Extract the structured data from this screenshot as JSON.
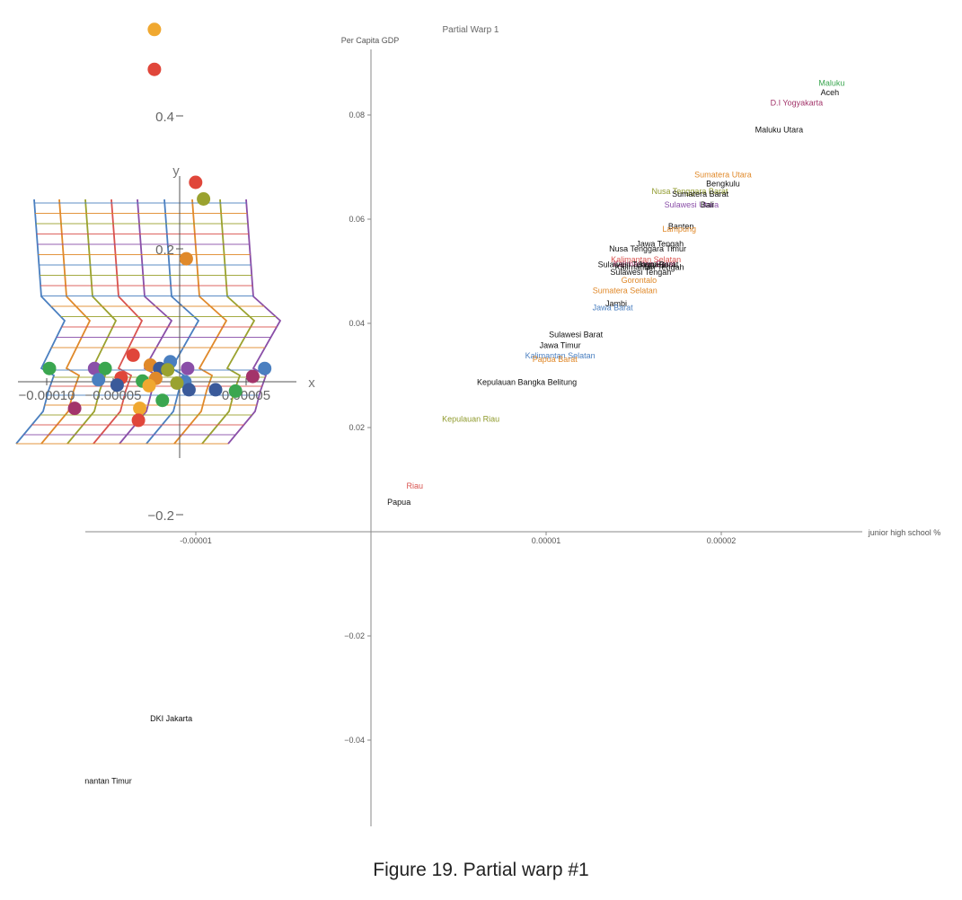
{
  "chart_data": [
    {
      "type": "scatter",
      "title": "Partial Warp 1",
      "xlabel": "junior high school %",
      "ylabel": "Per Capita GDP",
      "xlim": [
        -1.6e-05,
        2.75e-05
      ],
      "ylim": [
        -0.0555,
        0.0925
      ],
      "x_ticks": [
        {
          "value": -1e-05,
          "label": "-0.00001"
        },
        {
          "value": 1e-05,
          "label": "0.00001"
        },
        {
          "value": 2e-05,
          "label": "0.00002"
        }
      ],
      "y_ticks": [
        {
          "value": 0.08,
          "label": "0.08"
        },
        {
          "value": 0.06,
          "label": "0.06"
        },
        {
          "value": 0.04,
          "label": "0.04"
        },
        {
          "value": 0.02,
          "label": "0.02"
        },
        {
          "value": -0.02,
          "label": "−0.02"
        },
        {
          "value": -0.04,
          "label": "−0.04"
        }
      ],
      "points": [
        {
          "label": "Maluku",
          "x": 2.63e-05,
          "y": 0.0856,
          "color": "#3aa64f"
        },
        {
          "label": "Aceh",
          "x": 2.62e-05,
          "y": 0.0838,
          "color": "#111111"
        },
        {
          "label": "D.I Yogyakarta",
          "x": 2.43e-05,
          "y": 0.0818,
          "color": "#a3346a"
        },
        {
          "label": "Maluku Utara",
          "x": 2.33e-05,
          "y": 0.0766,
          "color": "#111111"
        },
        {
          "label": "Sumatera Utara",
          "x": 2.01e-05,
          "y": 0.068,
          "color": "#e0892a"
        },
        {
          "label": "Bengkulu",
          "x": 2.01e-05,
          "y": 0.0663,
          "color": "#111111"
        },
        {
          "label": "Nusa Tenggara Barat",
          "x": 1.82e-05,
          "y": 0.0648,
          "color": "#8f9a2c"
        },
        {
          "label": "Sumatera Barat",
          "x": 1.88e-05,
          "y": 0.0643,
          "color": "#111111"
        },
        {
          "label": "Sulawesi Utara",
          "x": 1.83e-05,
          "y": 0.0622,
          "color": "#8a4fa8"
        },
        {
          "label": "Bali",
          "x": 1.92e-05,
          "y": 0.0622,
          "color": "#111111"
        },
        {
          "label": "Banten",
          "x": 1.77e-05,
          "y": 0.0581,
          "color": "#111111"
        },
        {
          "label": "Lampung",
          "x": 1.76e-05,
          "y": 0.0576,
          "color": "#e0892a"
        },
        {
          "label": "Jawa Tengah",
          "x": 1.65e-05,
          "y": 0.0547,
          "color": "#111111"
        },
        {
          "label": "Nusa Tenggara Timur",
          "x": 1.58e-05,
          "y": 0.0538,
          "color": "#111111"
        },
        {
          "label": "Kalimantan Selatan",
          "x": 1.57e-05,
          "y": 0.0517,
          "color": "#d9534f"
        },
        {
          "label": "Kalimantan Barat",
          "x": 1.56e-05,
          "y": 0.0509,
          "color": "#a3346a"
        },
        {
          "label": "Sulawesi Tenggara",
          "x": 1.49e-05,
          "y": 0.0508,
          "color": "#111111"
        },
        {
          "label": "Jawa Barat",
          "x": 1.64e-05,
          "y": 0.0508,
          "color": "#111111"
        },
        {
          "label": "Kalimantan Tengah",
          "x": 1.59e-05,
          "y": 0.0503,
          "color": "#111111"
        },
        {
          "label": "Sulawesi Tengah",
          "x": 1.54e-05,
          "y": 0.0493,
          "color": "#111111"
        },
        {
          "label": "Gorontalo",
          "x": 1.53e-05,
          "y": 0.0478,
          "color": "#e0892a"
        },
        {
          "label": "Sumatera Selatan",
          "x": 1.45e-05,
          "y": 0.0458,
          "color": "#e0892a"
        },
        {
          "label": "Jambi",
          "x": 1.4e-05,
          "y": 0.0433,
          "color": "#111111"
        },
        {
          "label": "Jawa Barat",
          "x": 1.38e-05,
          "y": 0.0425,
          "color": "#4a7fc0"
        },
        {
          "label": "Sulawesi Barat",
          "x": 1.17e-05,
          "y": 0.0373,
          "color": "#111111"
        },
        {
          "label": "Jawa Timur",
          "x": 1.08e-05,
          "y": 0.0353,
          "color": "#111111"
        },
        {
          "label": "Kalimantan Selatan",
          "x": 1.08e-05,
          "y": 0.0333,
          "color": "#4a7fc0"
        },
        {
          "label": "Papua Barat",
          "x": 1.05e-05,
          "y": 0.0326,
          "color": "#e0892a"
        },
        {
          "label": "Kepulauan Bangka Belitung",
          "x": 8.9e-06,
          "y": 0.0282,
          "color": "#111111"
        },
        {
          "label": "Kepulauan Riau",
          "x": 5.7e-06,
          "y": 0.0211,
          "color": "#8f9a2c"
        },
        {
          "label": "Riau",
          "x": 2.5e-06,
          "y": 0.0083,
          "color": "#d9534f"
        },
        {
          "label": "Papua",
          "x": 1.6e-06,
          "y": 0.0052,
          "color": "#111111"
        },
        {
          "label": "DKI Jakarta",
          "x": -1.14e-05,
          "y": -0.0364,
          "color": "#111111"
        },
        {
          "label": "nantan Timur",
          "x": -1.5e-05,
          "y": -0.0484,
          "color": "#111111"
        }
      ]
    },
    {
      "type": "scatter",
      "title": "",
      "xlabel": "x",
      "ylabel": "y",
      "xlim": [
        -0.00012,
        7e-05
      ],
      "ylim": [
        -0.245,
        0.55
      ],
      "x_ticks": [
        {
          "value": -0.0001,
          "label": "−0.00010"
        },
        {
          "value": -5e-05,
          "label": "−0.00005"
        },
        {
          "value": 5e-05,
          "label": "0.00005"
        }
      ],
      "y_ticks": [
        {
          "value": 0.4,
          "label": "0.4"
        },
        {
          "value": 0.2,
          "label": "0.2"
        },
        {
          "value": -0.2,
          "label": "−0.2"
        }
      ],
      "points": [
        {
          "x": -1.9e-05,
          "y": 0.53,
          "color": "#f0a830"
        },
        {
          "x": -1.9e-05,
          "y": 0.47,
          "color": "#e0463a"
        },
        {
          "x": 1.2e-05,
          "y": 0.3,
          "color": "#e0463a"
        },
        {
          "x": 1.8e-05,
          "y": 0.275,
          "color": "#9aa22f"
        },
        {
          "x": 5e-06,
          "y": 0.185,
          "color": "#e0892a"
        },
        {
          "x": -3.5e-05,
          "y": 0.04,
          "color": "#e0463a"
        },
        {
          "x": -7e-06,
          "y": 0.03,
          "color": "#4a7fc0"
        },
        {
          "x": -2.2e-05,
          "y": 0.025,
          "color": "#e0892a"
        },
        {
          "x": -1.5e-05,
          "y": 0.02,
          "color": "#3a5a9a"
        },
        {
          "x": 6e-06,
          "y": 0.02,
          "color": "#8a4fa8"
        },
        {
          "x": -6.4e-05,
          "y": 0.02,
          "color": "#8a4fa8"
        },
        {
          "x": -5.6e-05,
          "y": 0.02,
          "color": "#3aa64f"
        },
        {
          "x": -9.8e-05,
          "y": 0.02,
          "color": "#3aa64f"
        },
        {
          "x": -9e-06,
          "y": 0.018,
          "color": "#9aa22f"
        },
        {
          "x": 6.4e-05,
          "y": 0.02,
          "color": "#4a7fc0"
        },
        {
          "x": 5.5e-05,
          "y": 0.008,
          "color": "#a3346a"
        },
        {
          "x": -4.4e-05,
          "y": 0.006,
          "color": "#e0463a"
        },
        {
          "x": -1.8e-05,
          "y": 0.005,
          "color": "#e0892a"
        },
        {
          "x": -6.1e-05,
          "y": 0.003,
          "color": "#4a7fc0"
        },
        {
          "x": -2.8e-05,
          "y": 0.001,
          "color": "#3aa64f"
        },
        {
          "x": 4e-06,
          "y": 0.0,
          "color": "#4a7fc0"
        },
        {
          "x": -2e-06,
          "y": -0.002,
          "color": "#9aa22f"
        },
        {
          "x": -4.7e-05,
          "y": -0.005,
          "color": "#3a5a9a"
        },
        {
          "x": -2.3e-05,
          "y": -0.006,
          "color": "#f0a830"
        },
        {
          "x": 7e-06,
          "y": -0.012,
          "color": "#3a5a9a"
        },
        {
          "x": 2.7e-05,
          "y": -0.012,
          "color": "#3a5a9a"
        },
        {
          "x": 4.2e-05,
          "y": -0.014,
          "color": "#3aa64f"
        },
        {
          "x": -1.3e-05,
          "y": -0.028,
          "color": "#3aa64f"
        },
        {
          "x": -7.9e-05,
          "y": -0.04,
          "color": "#a3346a"
        },
        {
          "x": -3e-05,
          "y": -0.04,
          "color": "#f0a830"
        },
        {
          "x": -3.1e-05,
          "y": -0.058,
          "color": "#e0463a"
        }
      ]
    }
  ],
  "caption": "Figure 19. Partial warp #1"
}
